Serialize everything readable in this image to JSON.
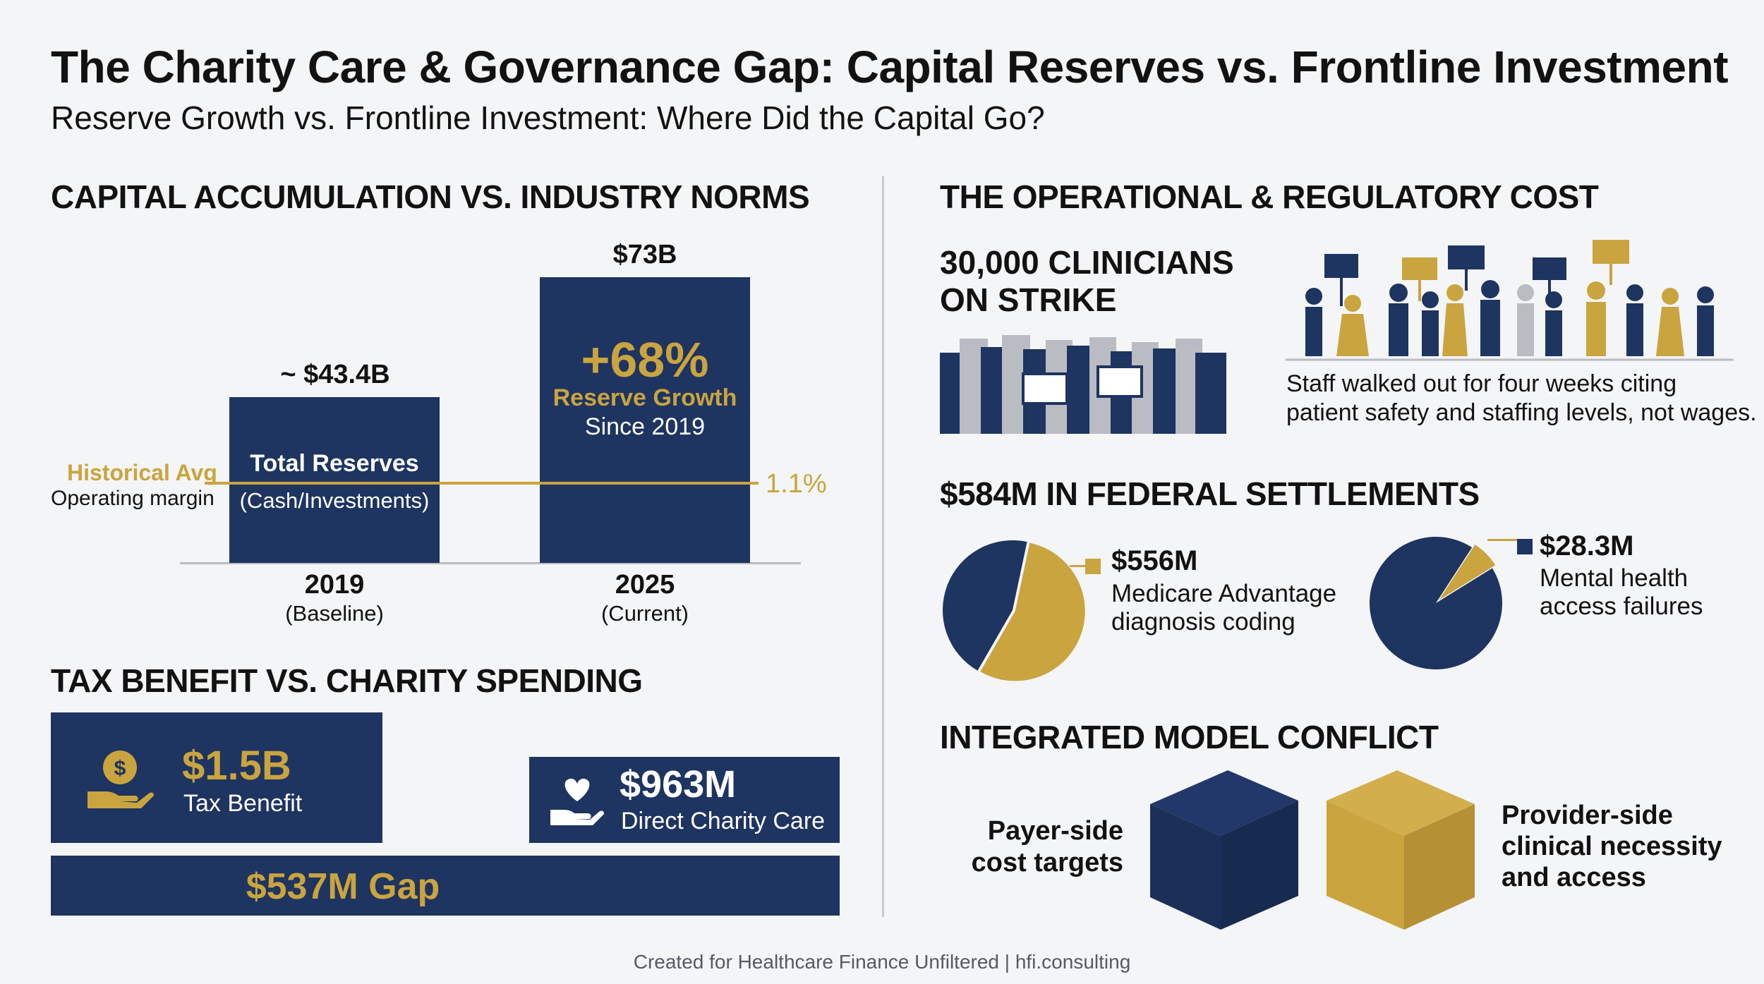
{
  "header": {
    "title": "The Charity Care & Governance Gap: Capital Reserves vs. Frontline Investment",
    "subtitle": "Reserve Growth vs. Frontline Investment: Where Did the Capital Go?"
  },
  "capital": {
    "heading": "CAPITAL ACCUMULATION VS. INDUSTRY NORMS",
    "bar2019": {
      "value_label": "~ $43.4B",
      "inner_title": "Total Reserves",
      "inner_sub": "(Cash/Investments)",
      "year": "2019",
      "note": "(Baseline)",
      "value": 43.4
    },
    "bar2025": {
      "value_label": "$73B",
      "growth": "+68%",
      "growth_label": "Reserve Growth",
      "growth_sub": "Since 2019",
      "year": "2025",
      "note": "(Current)",
      "value": 73
    },
    "avg_line": {
      "label": "Historical Avg",
      "sub": "Operating margin",
      "value_label": "1.1%"
    }
  },
  "tax": {
    "heading": "TAX BENEFIT VS. CHARITY SPENDING",
    "benefit": {
      "amount": "$1.5B",
      "label": "Tax Benefit",
      "icon": "dollar-hand-icon"
    },
    "charity": {
      "amount": "$963M",
      "label": "Direct Charity Care",
      "icon": "heart-hand-icon"
    },
    "gap": "$537M Gap"
  },
  "ops": {
    "heading": "THE OPERATIONAL & REGULATORY COST",
    "strike_title_1": "30,000 CLINICIANS",
    "strike_title_2": "ON STRIKE",
    "strike_desc_1": "Staff walked out for four weeks citing",
    "strike_desc_2": "patient safety and staffing levels, not wages.",
    "settlements_heading": "$584M IN FEDERAL SETTLEMENTS",
    "pie1": {
      "amount": "$556M",
      "line1": "Medicare Advantage",
      "line2": "diagnosis coding",
      "fraction": 0.55
    },
    "pie2": {
      "amount": "$28.3M",
      "line1": "Mental health",
      "line2": "access failures",
      "fraction": 0.07
    }
  },
  "model": {
    "heading": "INTEGRATED MODEL CONFLICT",
    "payer_1": "Payer-side",
    "payer_2": "cost targets",
    "provider_1": "Provider-side",
    "provider_2": "clinical necessity",
    "provider_3": "and access"
  },
  "footer": "Created for Healthcare Finance Unfiltered | hfi.consulting",
  "colors": {
    "navy": "#1e3461",
    "gold": "#c9a43f",
    "gray": "#b9bcc2"
  }
}
